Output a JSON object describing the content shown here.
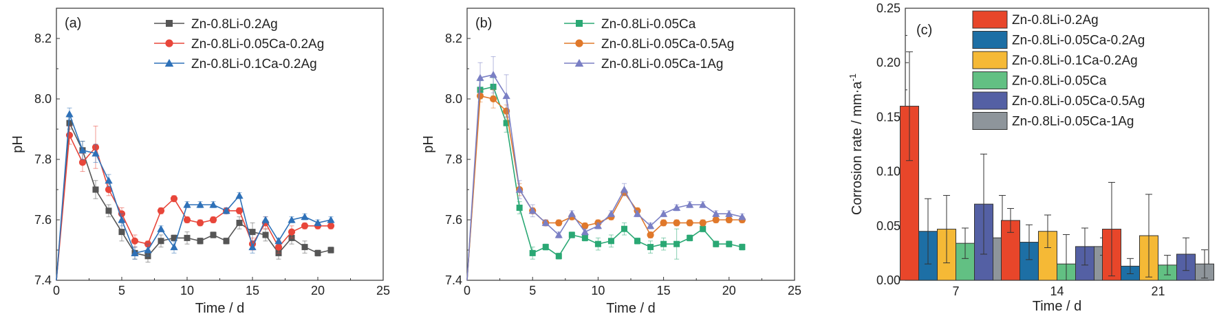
{
  "chart_data": [
    {
      "type": "line",
      "panel_label": "(a)",
      "xlabel": "Time / d",
      "ylabel": "pH",
      "xlim": [
        0,
        25
      ],
      "ylim": [
        7.4,
        8.3
      ],
      "xticks": [
        0,
        5,
        10,
        15,
        20,
        25
      ],
      "yticks": [
        7.4,
        7.6,
        7.8,
        8.0,
        8.2
      ],
      "xtick_labels": [
        "0",
        "5",
        "10",
        "15",
        "20",
        "25"
      ],
      "ytick_labels": [
        "7.4",
        "7.6",
        "7.8",
        "8.0",
        "8.2"
      ],
      "legend_position": "top-right",
      "series": [
        {
          "name": "Zn-0.8Li-0.2Ag",
          "color": "#555555",
          "marker": "square",
          "x": [
            0,
            1,
            2,
            3,
            4,
            5,
            6,
            7,
            8,
            9,
            10,
            11,
            12,
            13,
            14,
            15,
            16,
            17,
            18,
            19,
            20,
            21
          ],
          "y": [
            7.4,
            7.92,
            7.83,
            7.7,
            7.63,
            7.56,
            7.49,
            7.48,
            7.53,
            7.54,
            7.54,
            7.53,
            7.55,
            7.53,
            7.59,
            7.56,
            7.55,
            7.49,
            7.54,
            7.51,
            7.49,
            7.5
          ],
          "err": [
            0,
            0.02,
            0.03,
            0.03,
            0.02,
            0.03,
            0.02,
            0.02,
            0.02,
            0.01,
            0.02,
            0.01,
            0.01,
            0.01,
            0.02,
            0.03,
            0.02,
            0.02,
            0.02,
            0.02,
            0.01,
            0.01
          ]
        },
        {
          "name": "Zn-0.8Li-0.05Ca-0.2Ag",
          "color": "#e8463a",
          "marker": "circle",
          "x": [
            0,
            1,
            2,
            3,
            4,
            5,
            6,
            7,
            8,
            9,
            10,
            11,
            12,
            13,
            14,
            15,
            16,
            17,
            18,
            19,
            20,
            21
          ],
          "y": [
            7.4,
            7.88,
            7.79,
            7.84,
            7.7,
            7.62,
            7.53,
            7.52,
            7.63,
            7.67,
            7.6,
            7.59,
            7.6,
            7.63,
            7.63,
            7.52,
            7.59,
            7.51,
            7.56,
            7.58,
            7.58,
            7.58
          ],
          "err": [
            0,
            0.03,
            0.03,
            0.07,
            0.02,
            0.02,
            0.02,
            0.01,
            0.01,
            0.01,
            0.01,
            0.01,
            0.01,
            0.01,
            0.01,
            0.02,
            0.02,
            0.02,
            0.02,
            0.01,
            0.01,
            0.01
          ]
        },
        {
          "name": "Zn-0.8Li-0.1Ca-0.2Ag",
          "color": "#2e71b8",
          "marker": "triangle",
          "x": [
            0,
            1,
            2,
            3,
            4,
            5,
            6,
            7,
            8,
            9,
            10,
            11,
            12,
            13,
            14,
            15,
            16,
            17,
            18,
            19,
            20,
            21
          ],
          "y": [
            7.4,
            7.95,
            7.83,
            7.82,
            7.73,
            7.6,
            7.49,
            7.5,
            7.57,
            7.51,
            7.65,
            7.65,
            7.65,
            7.63,
            7.68,
            7.51,
            7.6,
            7.53,
            7.6,
            7.61,
            7.59,
            7.6
          ],
          "err": [
            0,
            0.02,
            0.03,
            0.03,
            0.02,
            0.02,
            0.02,
            0.02,
            0.01,
            0.02,
            0.01,
            0.01,
            0.01,
            0.01,
            0.01,
            0.02,
            0.01,
            0.01,
            0.01,
            0.01,
            0.01,
            0.01
          ]
        }
      ]
    },
    {
      "type": "line",
      "panel_label": "(b)",
      "xlabel": "Time / d",
      "ylabel": "pH",
      "xlim": [
        0,
        25
      ],
      "ylim": [
        7.4,
        8.3
      ],
      "xticks": [
        0,
        5,
        10,
        15,
        20,
        25
      ],
      "yticks": [
        7.4,
        7.6,
        7.8,
        8.0,
        8.2
      ],
      "xtick_labels": [
        "0",
        "5",
        "10",
        "15",
        "20",
        "25"
      ],
      "ytick_labels": [
        "7.4",
        "7.6",
        "7.8",
        "8.0",
        "8.2"
      ],
      "legend_position": "top-right",
      "series": [
        {
          "name": "Zn-0.8Li-0.05Ca",
          "color": "#2aa874",
          "marker": "square",
          "x": [
            0,
            1,
            2,
            3,
            4,
            5,
            6,
            7,
            8,
            9,
            10,
            11,
            12,
            13,
            14,
            15,
            16,
            17,
            18,
            19,
            20,
            21
          ],
          "y": [
            7.4,
            8.03,
            8.04,
            7.92,
            7.64,
            7.49,
            7.51,
            7.48,
            7.55,
            7.54,
            7.52,
            7.53,
            7.57,
            7.53,
            7.51,
            7.52,
            7.52,
            7.54,
            7.57,
            7.52,
            7.52,
            7.51
          ],
          "err": [
            0,
            0.03,
            0.03,
            0.03,
            0.02,
            0.02,
            0.01,
            0.01,
            0.01,
            0.01,
            0.02,
            0.02,
            0.02,
            0.01,
            0.02,
            0.02,
            0.05,
            0.01,
            0.01,
            0.01,
            0.01,
            0.01
          ]
        },
        {
          "name": "Zn-0.8Li-0.05Ca-0.5Ag",
          "color": "#e0782a",
          "marker": "circle",
          "x": [
            0,
            1,
            2,
            3,
            4,
            5,
            6,
            7,
            8,
            9,
            10,
            11,
            12,
            13,
            14,
            15,
            16,
            17,
            18,
            19,
            20,
            21
          ],
          "y": [
            7.4,
            8.01,
            8.0,
            7.96,
            7.7,
            7.63,
            7.59,
            7.59,
            7.61,
            7.58,
            7.59,
            7.61,
            7.69,
            7.63,
            7.55,
            7.59,
            7.59,
            7.59,
            7.59,
            7.6,
            7.6,
            7.6
          ],
          "err": [
            0,
            0.02,
            0.03,
            0.02,
            0.02,
            0.01,
            0.01,
            0.01,
            0.01,
            0.01,
            0.01,
            0.01,
            0.01,
            0.01,
            0.01,
            0.01,
            0.01,
            0.01,
            0.01,
            0.01,
            0.01,
            0.01
          ]
        },
        {
          "name": "Zn-0.8Li-0.05Ca-1Ag",
          "color": "#7a7fc4",
          "marker": "triangle",
          "x": [
            0,
            1,
            2,
            3,
            4,
            5,
            6,
            7,
            8,
            9,
            10,
            11,
            12,
            13,
            14,
            15,
            16,
            17,
            18,
            19,
            20,
            21
          ],
          "y": [
            7.4,
            8.07,
            8.08,
            8.01,
            7.7,
            7.63,
            7.59,
            7.55,
            7.62,
            7.56,
            7.58,
            7.62,
            7.7,
            7.62,
            7.58,
            7.62,
            7.64,
            7.65,
            7.65,
            7.62,
            7.62,
            7.61
          ],
          "err": [
            0,
            0.05,
            0.06,
            0.07,
            0.03,
            0.02,
            0.01,
            0.01,
            0.01,
            0.01,
            0.01,
            0.01,
            0.02,
            0.01,
            0.01,
            0.01,
            0.01,
            0.01,
            0.01,
            0.01,
            0.01,
            0.01
          ]
        }
      ]
    },
    {
      "type": "bar",
      "panel_label": "(c)",
      "xlabel": "Time / d",
      "ylabel": "Corrosion rate / mm·a",
      "ylabel_sup": "-1",
      "categories": [
        "7",
        "14",
        "21"
      ],
      "ylim": [
        0,
        0.25
      ],
      "yticks": [
        0,
        0.05,
        0.1,
        0.15,
        0.2,
        0.25
      ],
      "ytick_labels": [
        "0.00",
        "0.05",
        "0.10",
        "0.15",
        "0.20",
        "0.25"
      ],
      "legend_position": "top-right",
      "series": [
        {
          "name": "Zn-0.8Li-0.2Ag",
          "color": "#e8462a",
          "values": [
            0.16,
            0.055,
            0.047
          ],
          "err": [
            0.05,
            0.011,
            0.043
          ]
        },
        {
          "name": "Zn-0.8Li-0.05Ca-0.2Ag",
          "color": "#1d6fa5",
          "values": [
            0.045,
            0.035,
            0.013
          ],
          "err": [
            0.03,
            0.016,
            0.007
          ]
        },
        {
          "name": "Zn-0.8Li-0.1Ca-0.2Ag",
          "color": "#f5b936",
          "values": [
            0.047,
            0.045,
            0.041
          ],
          "err": [
            0.031,
            0.015,
            0.038
          ]
        },
        {
          "name": "Zn-0.8Li-0.05Ca",
          "color": "#62c083",
          "values": [
            0.034,
            0.015,
            0.014
          ],
          "err": [
            0.014,
            0.027,
            0.009
          ]
        },
        {
          "name": "Zn-0.8Li-0.05Ca-0.5Ag",
          "color": "#5460a4",
          "values": [
            0.07,
            0.031,
            0.024
          ],
          "err": [
            0.046,
            0.017,
            0.015
          ]
        },
        {
          "name": "Zn-0.8Li-0.05Ca-1Ag",
          "color": "#8e959b",
          "values": [
            0.039,
            0.031,
            0.015
          ],
          "err": [
            0.039,
            0.008,
            0.013
          ]
        }
      ]
    }
  ]
}
